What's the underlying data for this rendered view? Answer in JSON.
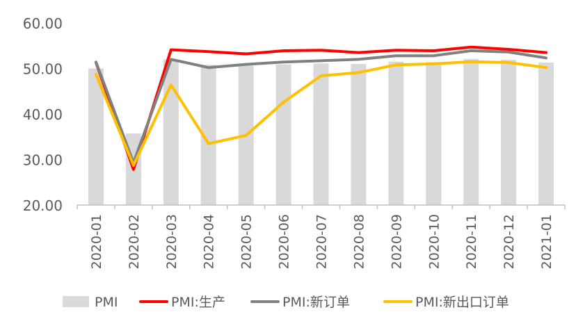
{
  "chart_data": {
    "type": "bar",
    "title": "",
    "xlabel": "",
    "ylabel": "",
    "ylim": [
      20,
      60
    ],
    "yticks": [
      "20.00",
      "30.00",
      "40.00",
      "50.00",
      "60.00"
    ],
    "grid": false,
    "legend_position": "bottom",
    "categories": [
      "2020-01",
      "2020-02",
      "2020-03",
      "2020-04",
      "2020-05",
      "2020-06",
      "2020-07",
      "2020-08",
      "2020-09",
      "2020-10",
      "2020-11",
      "2020-12",
      "2021-01"
    ],
    "series": [
      {
        "name": "PMI",
        "type": "bar",
        "color": "#d9d9d9",
        "values": [
          50.0,
          35.7,
          52.0,
          50.8,
          50.6,
          50.9,
          51.1,
          51.0,
          51.5,
          51.4,
          52.1,
          51.9,
          51.3
        ]
      },
      {
        "name": "PMI:生产",
        "type": "line",
        "color": "#ff0000",
        "values": [
          51.3,
          27.8,
          54.1,
          53.7,
          53.2,
          53.9,
          54.0,
          53.5,
          54.0,
          53.9,
          54.7,
          54.2,
          53.5
        ]
      },
      {
        "name": "PMI:新订单",
        "type": "line",
        "color": "#808080",
        "values": [
          51.4,
          29.3,
          52.0,
          50.2,
          50.9,
          51.4,
          51.7,
          52.0,
          52.8,
          52.8,
          53.9,
          53.6,
          52.3
        ]
      },
      {
        "name": "PMI:新出口订单",
        "type": "line",
        "color": "#ffc000",
        "values": [
          48.7,
          28.7,
          46.4,
          33.5,
          35.3,
          42.6,
          48.4,
          49.1,
          50.8,
          51.0,
          51.5,
          51.3,
          50.2
        ]
      }
    ]
  }
}
